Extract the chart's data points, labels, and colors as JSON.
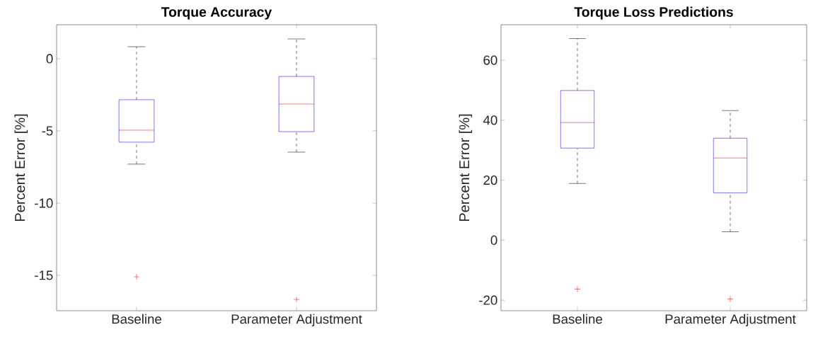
{
  "chart_data": [
    {
      "type": "box",
      "title": "Torque Accuracy",
      "ylabel": "Percent Error [%]",
      "categories": [
        "Baseline",
        "Parameter Adjustment"
      ],
      "color": "#0000ff",
      "ylim": [
        -17.45,
        2.35
      ],
      "yticks": [
        -15,
        -10,
        -5,
        0
      ],
      "grid": false,
      "boxes": [
        {
          "low": -7.3,
          "q1": -5.78,
          "median": -4.95,
          "q3": -2.84,
          "high": 0.83,
          "outliers": [
            -15.1
          ]
        },
        {
          "low": -6.47,
          "q1": -5.05,
          "median": -3.14,
          "q3": -1.23,
          "high": 1.37,
          "outliers": [
            -16.67
          ]
        }
      ]
    },
    {
      "type": "box",
      "title": "Torque Loss Predictions",
      "ylabel": "Percent Error [%]",
      "categories": [
        "Baseline",
        "Parameter Adjustment"
      ],
      "color": "#0000ff",
      "ylim": [
        -23.5,
        71.8
      ],
      "yticks": [
        -20,
        0,
        20,
        40,
        60
      ],
      "grid": false,
      "boxes": [
        {
          "low": 18.9,
          "q1": 30.7,
          "median": 39.2,
          "q3": 49.9,
          "high": 67.2,
          "outliers": [
            -16.3
          ]
        },
        {
          "low": 2.8,
          "q1": 15.8,
          "median": 27.4,
          "q3": 34.0,
          "high": 43.2,
          "outliers": [
            -19.6
          ]
        }
      ]
    }
  ]
}
